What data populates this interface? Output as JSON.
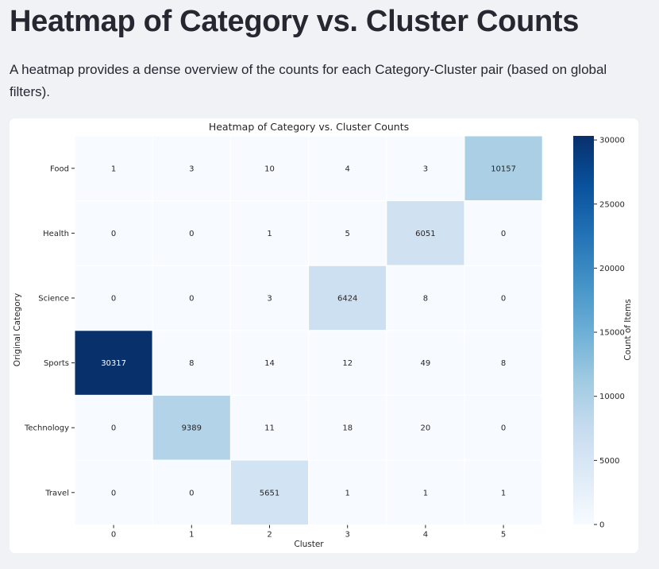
{
  "page": {
    "title": "Heatmap of Category vs. Cluster Counts",
    "description": "A heatmap provides a dense overview of the counts for each Category-Cluster pair (based on global filters)."
  },
  "chart_data": {
    "type": "heatmap",
    "title": "Heatmap of Category vs. Cluster Counts",
    "xlabel": "Cluster",
    "ylabel": "Original Category",
    "x_categories": [
      "0",
      "1",
      "2",
      "3",
      "4",
      "5"
    ],
    "y_categories": [
      "Food",
      "Health",
      "Science",
      "Sports",
      "Technology",
      "Travel"
    ],
    "values": [
      [
        1,
        3,
        10,
        4,
        3,
        10157
      ],
      [
        0,
        0,
        1,
        5,
        6051,
        0
      ],
      [
        0,
        0,
        3,
        6424,
        8,
        0
      ],
      [
        30317,
        8,
        14,
        12,
        49,
        8
      ],
      [
        0,
        9389,
        11,
        18,
        20,
        0
      ],
      [
        0,
        0,
        5651,
        1,
        1,
        1
      ]
    ],
    "colorbar": {
      "label": "Count of Items",
      "range": [
        0,
        30317
      ],
      "ticks": [
        0,
        5000,
        10000,
        15000,
        20000,
        25000,
        30000
      ],
      "colormap": "Blues",
      "color_low": "#f7fbff",
      "color_high": "#08306b"
    },
    "grid": true,
    "legend": "colorbar-right"
  }
}
